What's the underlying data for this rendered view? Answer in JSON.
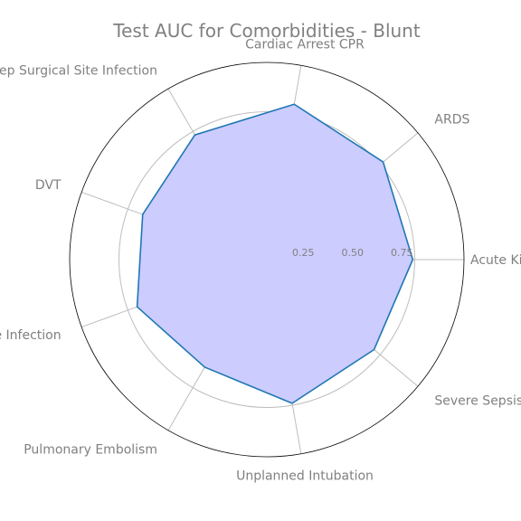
{
  "chart_data": {
    "type": "radar",
    "title": "Test AUC for Comorbidities - Blunt",
    "categories": [
      "Acute Kidney Inj",
      "ARDS",
      "Cardiac Arrest CPR",
      "Deep Surgical Site Infection",
      "DVT",
      "Organ Space Surgical Site Infection",
      "Pulmonary Embolism",
      "Unplanned Intubation",
      "Severe Sepsis"
    ],
    "values": [
      0.74,
      0.77,
      0.8,
      0.73,
      0.67,
      0.7,
      0.63,
      0.74,
      0.71
    ],
    "rlim": [
      0,
      1.0
    ],
    "r_ticks": [
      "0.25",
      "0.50",
      "0.75"
    ],
    "r_tick_values": [
      0.25,
      0.5,
      0.75
    ],
    "grid": true,
    "colors": {
      "line": "#1f77b4",
      "fill": "#ccccff",
      "grid": "#bdbdbd",
      "text": "#808080"
    }
  }
}
